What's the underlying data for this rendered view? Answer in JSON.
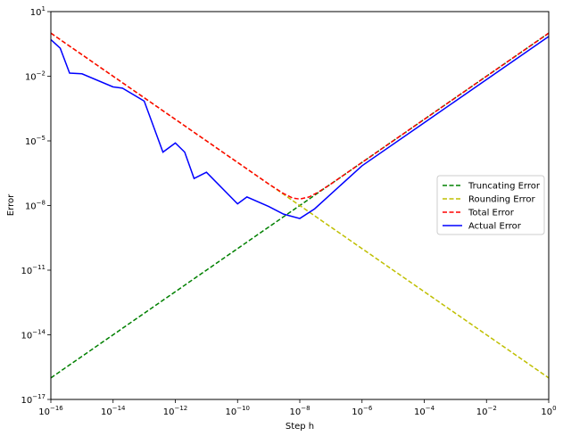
{
  "chart_data": {
    "type": "line",
    "title": "",
    "xlabel": "Step h",
    "ylabel": "Error",
    "xscale": "log",
    "yscale": "log",
    "xlim": [
      1e-16,
      1
    ],
    "ylim": [
      1e-17,
      10
    ],
    "xticks": [
      {
        "value": 1e-16,
        "base": "10",
        "exp": "−16"
      },
      {
        "value": 1e-14,
        "base": "10",
        "exp": "−14"
      },
      {
        "value": 1e-12,
        "base": "10",
        "exp": "−12"
      },
      {
        "value": 1e-10,
        "base": "10",
        "exp": "−10"
      },
      {
        "value": 1e-08,
        "base": "10",
        "exp": "−8"
      },
      {
        "value": 1e-06,
        "base": "10",
        "exp": "−6"
      },
      {
        "value": 0.0001,
        "base": "10",
        "exp": "−4"
      },
      {
        "value": 0.01,
        "base": "10",
        "exp": "−2"
      },
      {
        "value": 1,
        "base": "10",
        "exp": "0"
      }
    ],
    "yticks": [
      {
        "value": 1e-17,
        "base": "10",
        "exp": "−17"
      },
      {
        "value": 1e-14,
        "base": "10",
        "exp": "−14"
      },
      {
        "value": 1e-11,
        "base": "10",
        "exp": "−11"
      },
      {
        "value": 1e-08,
        "base": "10",
        "exp": "−8"
      },
      {
        "value": 1e-05,
        "base": "10",
        "exp": "−5"
      },
      {
        "value": 0.01,
        "base": "10",
        "exp": "−2"
      },
      {
        "value": 10,
        "base": "10",
        "exp": "1"
      }
    ],
    "legend_position": "center-right",
    "grid": false,
    "series": [
      {
        "name": "Truncating Error",
        "color": "#008000",
        "style": "dashed",
        "x": [
          1e-16,
          1e-14,
          1e-12,
          1e-10,
          1e-08,
          1e-06,
          0.0001,
          0.01,
          1
        ],
        "y": [
          1e-16,
          1e-14,
          1e-12,
          1e-10,
          1e-08,
          1e-06,
          0.0001,
          0.01,
          1
        ]
      },
      {
        "name": "Rounding Error",
        "color": "#bfbf00",
        "style": "dashed",
        "x": [
          1e-16,
          1e-14,
          1e-12,
          1e-10,
          1e-08,
          1e-06,
          0.0001,
          0.01,
          1
        ],
        "y": [
          1,
          0.01,
          0.0001,
          1e-06,
          1e-08,
          1e-10,
          1e-12,
          1e-14,
          1e-16
        ]
      },
      {
        "name": "Total Error",
        "color": "#ff0000",
        "style": "dashed",
        "x": [
          1e-16,
          1e-14,
          1e-12,
          1e-10,
          1e-09,
          3e-09,
          6e-09,
          1e-08,
          2e-08,
          4e-08,
          1e-07,
          1e-06,
          0.0001,
          0.01,
          1
        ],
        "y": [
          1,
          0.01,
          0.0001,
          1e-06,
          1e-07,
          3.6e-08,
          2.2e-08,
          2e-08,
          2.5e-08,
          4.25e-08,
          1e-07,
          1e-06,
          0.0001,
          0.01,
          1
        ]
      },
      {
        "name": "Actual Error",
        "color": "#0000ff",
        "style": "solid",
        "x": [
          1e-16,
          2e-16,
          4e-16,
          1e-15,
          1e-14,
          2e-14,
          1e-13,
          4e-13,
          1e-12,
          2e-12,
          4e-12,
          1e-11,
          1e-10,
          2e-10,
          1e-09,
          3e-09,
          1e-08,
          3e-08,
          1e-06,
          0.0001,
          0.01,
          1
        ],
        "y": [
          0.5,
          0.2,
          0.014,
          0.013,
          0.0032,
          0.0028,
          0.0007,
          3e-06,
          8e-06,
          3e-06,
          1.8e-07,
          3.5e-07,
          1.2e-08,
          2.5e-08,
          9e-09,
          4e-09,
          2.5e-09,
          7e-09,
          7e-07,
          7e-05,
          0.007,
          0.7
        ]
      }
    ]
  }
}
